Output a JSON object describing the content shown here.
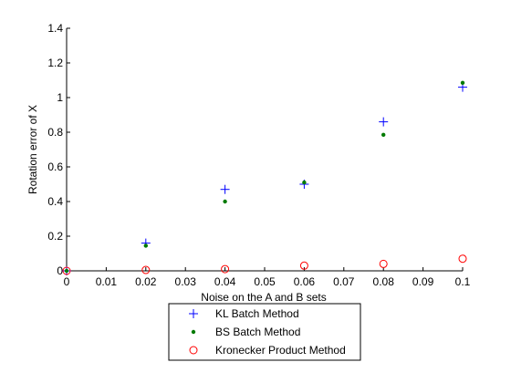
{
  "chart_data": {
    "type": "scatter",
    "title": "",
    "xlabel": "Noise on the A and B sets",
    "ylabel": "Rotation error of X",
    "xlim": [
      0,
      0.1
    ],
    "ylim": [
      0,
      1.4
    ],
    "xticks": [
      0,
      0.01,
      0.02,
      0.03,
      0.04,
      0.05,
      0.06,
      0.07,
      0.08,
      0.09,
      0.1
    ],
    "xtick_labels": [
      "0",
      "0.01",
      "0.02",
      "0.03",
      "0.04",
      "0.05",
      "0.06",
      "0.07",
      "0.08",
      "0.09",
      "0.1"
    ],
    "yticks": [
      0,
      0.2,
      0.4,
      0.6,
      0.8,
      1,
      1.2,
      1.4
    ],
    "ytick_labels": [
      "0",
      "0.2",
      "0.4",
      "0.6",
      "0.8",
      "1",
      "1.2",
      "1.4"
    ],
    "grid": false,
    "legend_position": "below plot, outside",
    "series": [
      {
        "name": "KL Batch Method",
        "marker": "plus",
        "color": "#0000ff",
        "x": [
          0,
          0.02,
          0.04,
          0.06,
          0.08,
          0.1
        ],
        "y": [
          0.0,
          0.16,
          0.47,
          0.5,
          0.86,
          1.06
        ]
      },
      {
        "name": "BS Batch Method",
        "marker": "dot",
        "color": "#007a00",
        "x": [
          0,
          0.02,
          0.04,
          0.06,
          0.08,
          0.1
        ],
        "y": [
          0.0,
          0.145,
          0.4,
          0.51,
          0.785,
          1.085
        ]
      },
      {
        "name": "Kronecker Product Method",
        "marker": "circle",
        "color": "#ff0000",
        "x": [
          0,
          0.02,
          0.04,
          0.06,
          0.08,
          0.1
        ],
        "y": [
          0.0,
          0.005,
          0.01,
          0.03,
          0.04,
          0.07
        ]
      }
    ]
  }
}
